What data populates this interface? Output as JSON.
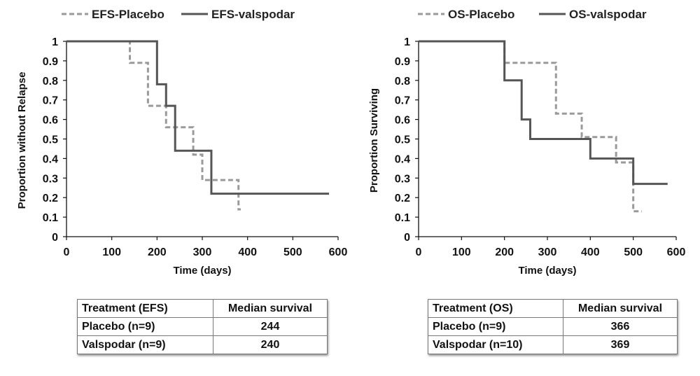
{
  "colors": {
    "placebo": "#9a9a9a",
    "treatment": "#555555",
    "axis": "#111111"
  },
  "chart_data": [
    {
      "type": "line",
      "step": true,
      "title": "",
      "xlabel": "Time (days)",
      "ylabel": "Proportion without Relapse",
      "xlim": [
        0,
        600
      ],
      "ylim": [
        0,
        1
      ],
      "xticks": [
        "0",
        "100",
        "200",
        "300",
        "400",
        "500",
        "600"
      ],
      "yticks": [
        "0",
        "0.1",
        "0.2",
        "0.3",
        "0.4",
        "0.5",
        "0.6",
        "0.7",
        "0.8",
        "0.9",
        "1"
      ],
      "grid": false,
      "legend": "top",
      "series": [
        {
          "name": "EFS-Placebo",
          "style": "dashed",
          "x": [
            0,
            140,
            180,
            220,
            280,
            300,
            380,
            385
          ],
          "y": [
            1,
            0.89,
            0.67,
            0.56,
            0.42,
            0.29,
            0.14,
            0.14
          ]
        },
        {
          "name": "EFS-valspodar",
          "style": "solid",
          "x": [
            0,
            200,
            220,
            240,
            320,
            580
          ],
          "y": [
            1,
            0.78,
            0.67,
            0.44,
            0.22,
            0.22
          ]
        }
      ]
    },
    {
      "type": "line",
      "step": true,
      "title": "",
      "xlabel": "Time (days)",
      "ylabel": "Proportion Surviving",
      "xlim": [
        0,
        600
      ],
      "ylim": [
        0,
        1
      ],
      "xticks": [
        "0",
        "100",
        "200",
        "300",
        "400",
        "500",
        "600"
      ],
      "yticks": [
        "0",
        "0.1",
        "0.2",
        "0.3",
        "0.4",
        "0.5",
        "0.6",
        "0.7",
        "0.8",
        "0.9",
        "1"
      ],
      "grid": false,
      "legend": "top",
      "series": [
        {
          "name": "OS-Placebo",
          "style": "dashed",
          "x": [
            0,
            200,
            320,
            380,
            460,
            500,
            520
          ],
          "y": [
            1,
            0.89,
            0.63,
            0.51,
            0.38,
            0.13,
            0.13
          ]
        },
        {
          "name": "OS-valspodar",
          "style": "solid",
          "x": [
            0,
            200,
            240,
            260,
            400,
            500,
            580
          ],
          "y": [
            1,
            0.8,
            0.6,
            0.5,
            0.4,
            0.27,
            0.27
          ]
        }
      ]
    }
  ],
  "tables": {
    "efs": {
      "header": [
        "Treatment (EFS)",
        "Median survival"
      ],
      "rows": [
        [
          "Placebo (n=9)",
          "244"
        ],
        [
          "Valspodar (n=9)",
          "240"
        ]
      ]
    },
    "os": {
      "header": [
        "Treatment (OS)",
        "Median survival"
      ],
      "rows": [
        [
          "Placebo (n=9)",
          "366"
        ],
        [
          "Valspodar (n=10)",
          "369"
        ]
      ]
    }
  }
}
